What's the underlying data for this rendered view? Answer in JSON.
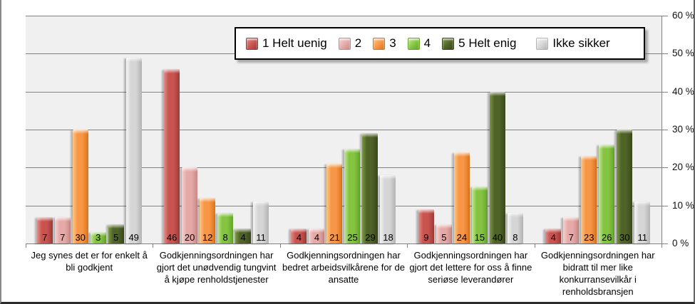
{
  "chart_data": {
    "type": "bar",
    "title": "",
    "xlabel": "",
    "ylabel": "",
    "ylim": [
      0,
      60
    ],
    "grid": true,
    "axis_side": "right",
    "legend_position": "top",
    "value_labels": "inside-base",
    "y_ticks": [
      {
        "value": 0,
        "label": "0 %"
      },
      {
        "value": 10,
        "label": "10 %"
      },
      {
        "value": 20,
        "label": "20 %"
      },
      {
        "value": 30,
        "label": "30 %"
      },
      {
        "value": 40,
        "label": "40 %"
      },
      {
        "value": 50,
        "label": "50 %"
      },
      {
        "value": 60,
        "label": "60 %"
      }
    ],
    "categories": [
      "Jeg synes det er for enkelt å bli godkjent",
      "Godkjenningsordningen har gjort det unødvendig tungvint å kjøpe renholdstjenester",
      "Godkjenningsordningen har bedret arbeidsvilkårene for de ansatte",
      "Godkjenningsordningen har gjort det lettere for oss å finne seriøse leverandører",
      "Godkjenningsordningen har bidratt til mer like konkurransevilkår i renholdsbransjen"
    ],
    "series": [
      {
        "name": "1 Helt uenig",
        "values": [
          7,
          46,
          4,
          9,
          4
        ],
        "color": {
          "light": "#DE8E8B",
          "main": "#C9534F",
          "dark": "#9E3B38"
        }
      },
      {
        "name": "2",
        "values": [
          7,
          20,
          4,
          5,
          7
        ],
        "color": {
          "light": "#F7D2D0",
          "main": "#E5A9A7",
          "dark": "#C98886"
        }
      },
      {
        "name": "3",
        "values": [
          30,
          12,
          21,
          24,
          23
        ],
        "color": {
          "light": "#FCC788",
          "main": "#F79646",
          "dark": "#DC7318"
        }
      },
      {
        "name": "4",
        "values": [
          3,
          8,
          25,
          15,
          26
        ],
        "color": {
          "light": "#C4E698",
          "main": "#84C441",
          "dark": "#66A52B"
        }
      },
      {
        "name": "5 Helt enig",
        "values": [
          5,
          4,
          29,
          40,
          30
        ],
        "color": {
          "light": "#7C9743",
          "main": "#4F6228",
          "dark": "#3A481D"
        }
      },
      {
        "name": "Ikke sikker",
        "values": [
          49,
          11,
          18,
          8,
          11
        ],
        "color": {
          "light": "#F4F4F4",
          "main": "#D5D5D5",
          "dark": "#B3B3B3"
        }
      }
    ]
  },
  "colors": {
    "plot_background": "#F1F0F0",
    "gridline": "#828282",
    "legend_border": "#000000",
    "frame_border": "#666666",
    "label_text": "#000000"
  }
}
